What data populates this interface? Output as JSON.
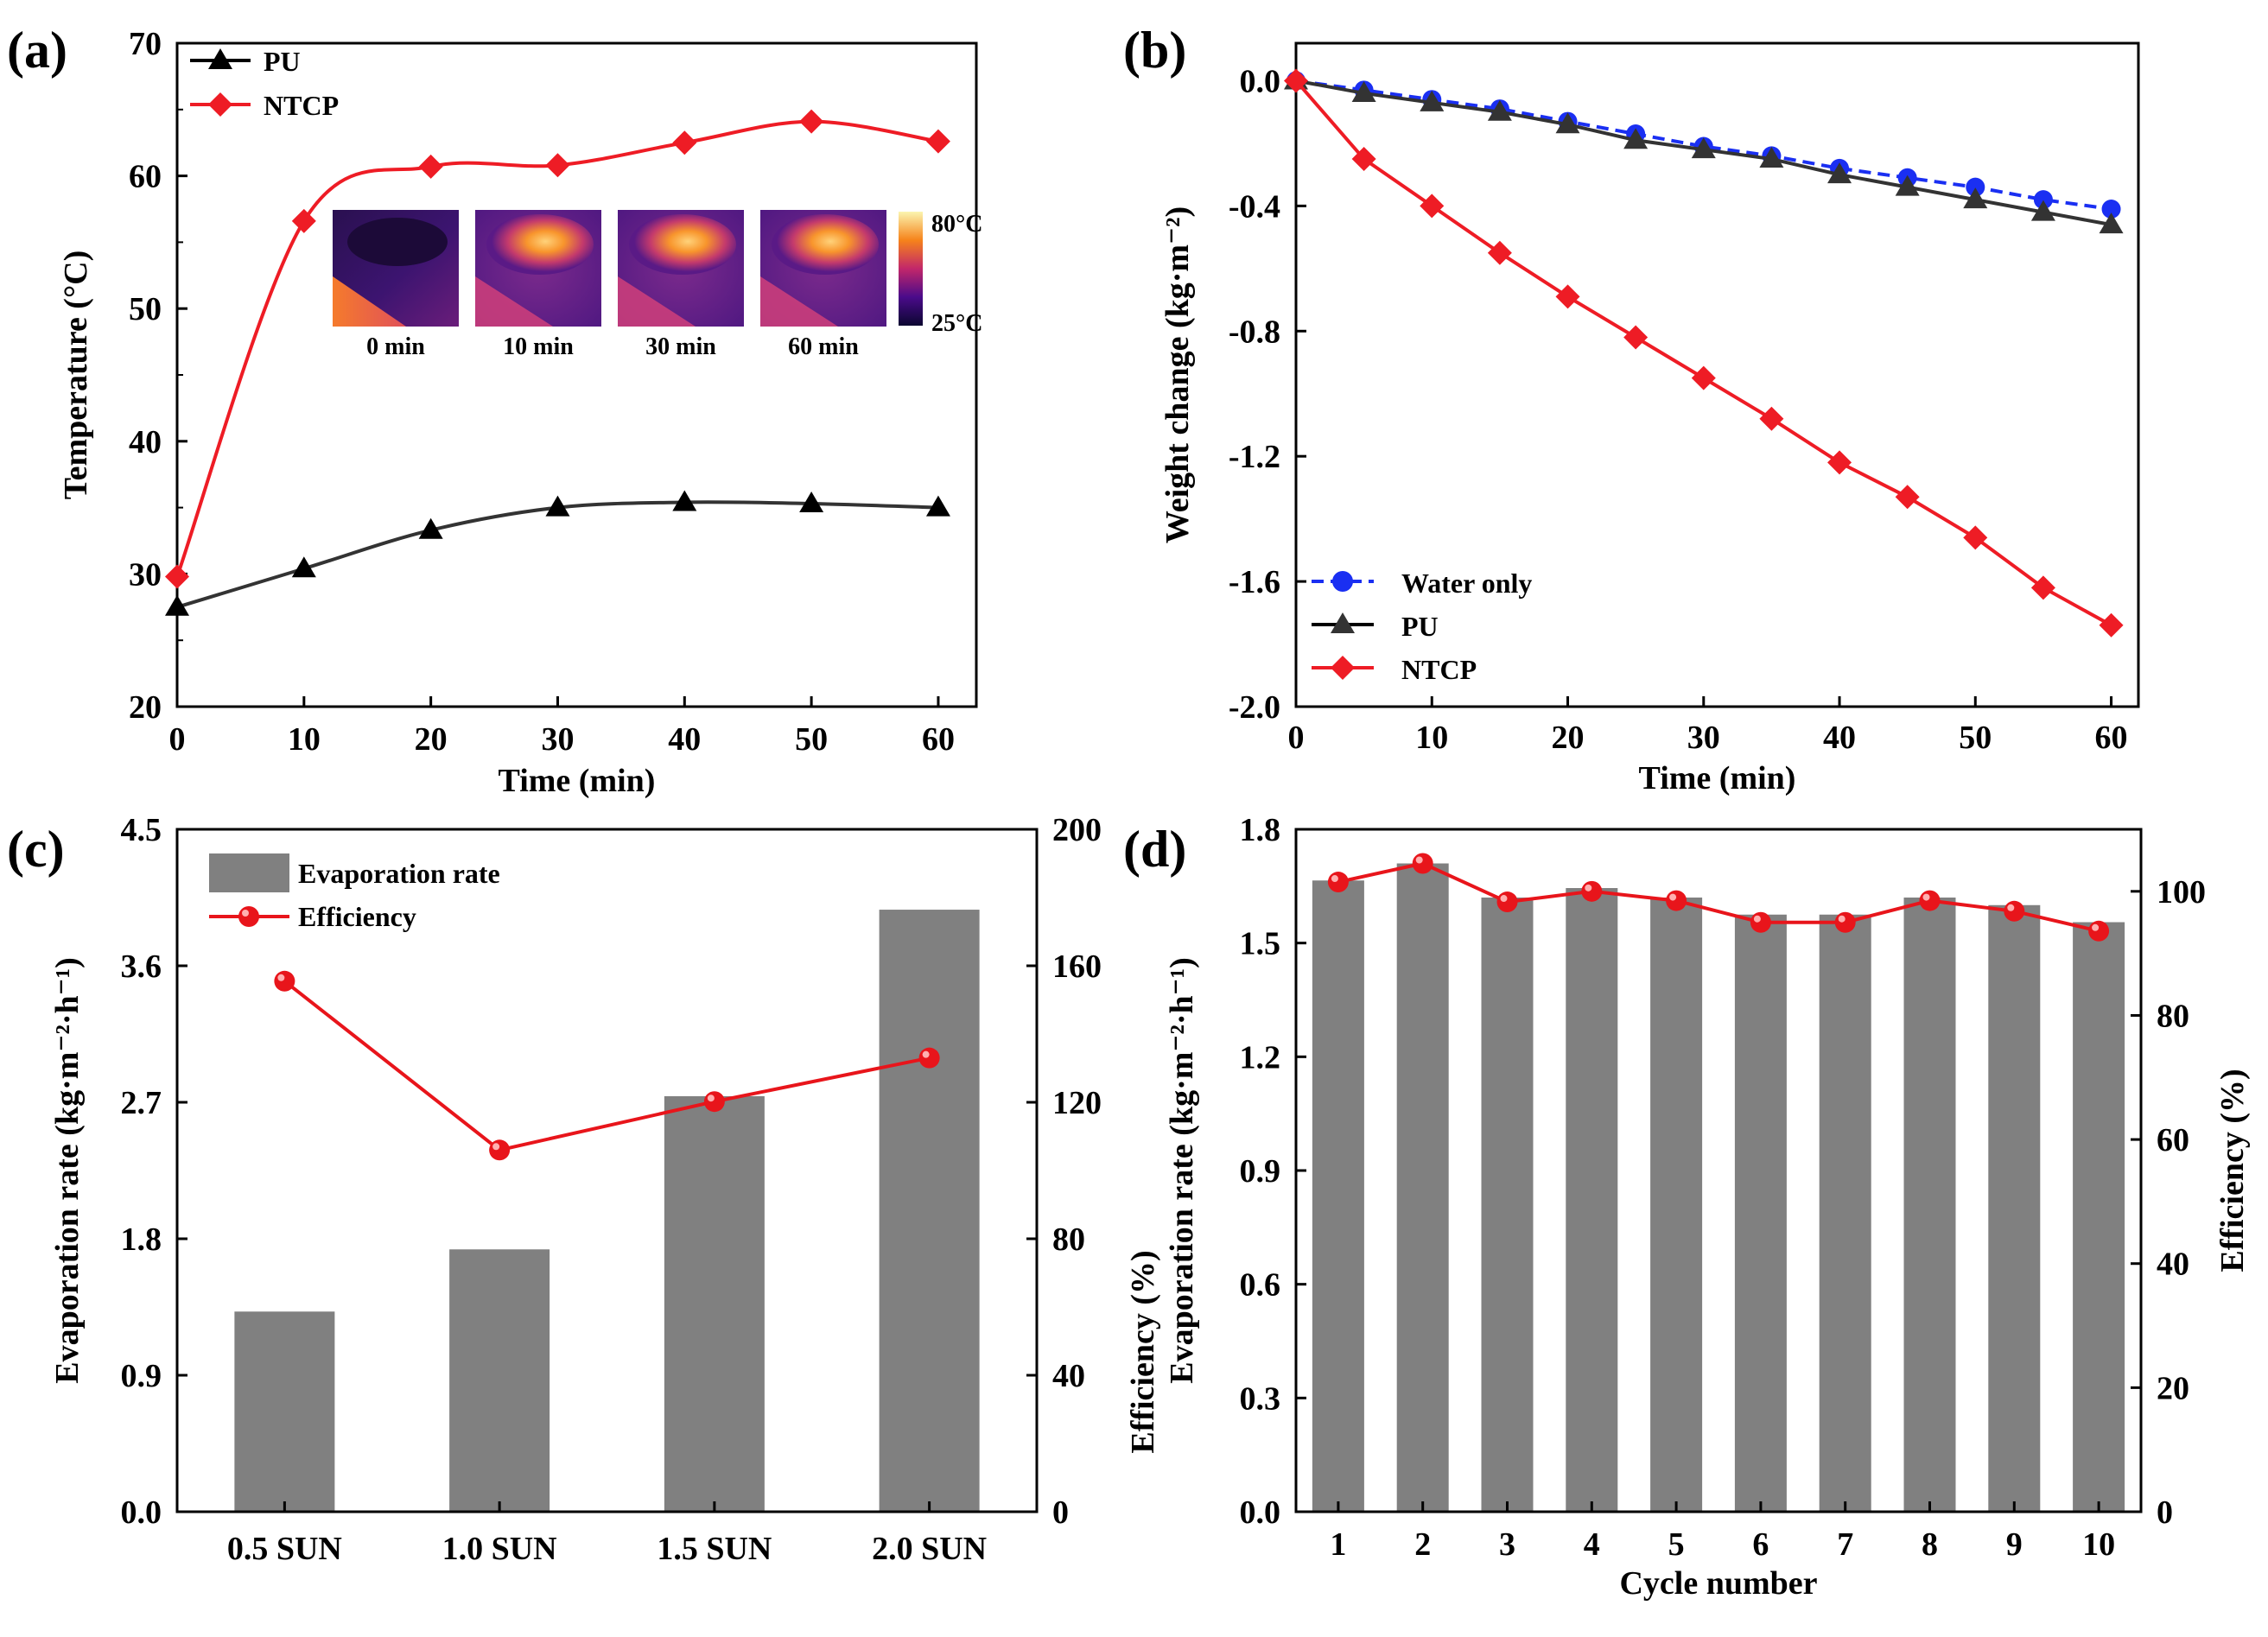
{
  "colors": {
    "pu": "#000000",
    "ntcp": "#ee1c25",
    "water": "#1a2ff2",
    "bar": "#808080",
    "efficiency": "#e8151b",
    "axis": "#000000"
  },
  "chart_data": [
    {
      "panel": "a",
      "panel_label": "(a)",
      "type": "line",
      "xlabel": "Time (min)",
      "ylabel": "Temperature (°C)",
      "xlim": [
        0,
        63
      ],
      "ylim": [
        20,
        70
      ],
      "xticks": [
        0,
        10,
        20,
        30,
        40,
        50,
        60
      ],
      "yticks": [
        20,
        30,
        40,
        50,
        60,
        70
      ],
      "legend": "top-left",
      "series": [
        {
          "name": "PU",
          "marker": "triangle",
          "x": [
            0,
            10,
            20,
            30,
            40,
            50,
            60
          ],
          "values": [
            27.5,
            30.4,
            33.3,
            35.0,
            35.4,
            35.3,
            35.0
          ]
        },
        {
          "name": "NTCP",
          "marker": "diamond",
          "x": [
            0,
            10,
            20,
            30,
            40,
            50,
            60
          ],
          "values": [
            29.8,
            56.6,
            60.7,
            60.8,
            62.5,
            64.1,
            62.6
          ]
        }
      ],
      "inset": {
        "times": [
          "0 min",
          "10 min",
          "30 min",
          "60 min"
        ],
        "colorbar_max": "80°C",
        "colorbar_min": "25°C"
      }
    },
    {
      "panel": "b",
      "panel_label": "(b)",
      "type": "line",
      "xlabel": "Time (min)",
      "ylabel": "Weight change (kg·m⁻²)",
      "xlim": [
        0,
        62
      ],
      "ylim": [
        -2.0,
        0.12
      ],
      "xticks": [
        0,
        10,
        20,
        30,
        40,
        50,
        60
      ],
      "yticks": [
        0.0,
        -0.4,
        -0.8,
        -1.2,
        -1.6,
        -2.0
      ],
      "legend": "bottom-left",
      "series": [
        {
          "name": "Water only",
          "marker": "circle",
          "x": [
            0,
            5,
            10,
            15,
            20,
            25,
            30,
            35,
            40,
            45,
            50,
            55,
            60
          ],
          "values": [
            0.0,
            -0.03,
            -0.06,
            -0.09,
            -0.13,
            -0.17,
            -0.21,
            -0.24,
            -0.28,
            -0.31,
            -0.34,
            -0.38,
            -0.41
          ]
        },
        {
          "name": "PU",
          "marker": "triangle",
          "x": [
            0,
            5,
            10,
            15,
            20,
            25,
            30,
            35,
            40,
            45,
            50,
            55,
            60
          ],
          "values": [
            0.0,
            -0.04,
            -0.07,
            -0.1,
            -0.14,
            -0.19,
            -0.22,
            -0.25,
            -0.3,
            -0.34,
            -0.38,
            -0.42,
            -0.46
          ]
        },
        {
          "name": "NTCP",
          "marker": "diamond",
          "x": [
            0,
            5,
            10,
            15,
            20,
            25,
            30,
            35,
            40,
            45,
            50,
            55,
            60
          ],
          "values": [
            0.0,
            -0.25,
            -0.4,
            -0.55,
            -0.69,
            -0.82,
            -0.95,
            -1.08,
            -1.22,
            -1.33,
            -1.46,
            -1.62,
            -1.74
          ]
        }
      ]
    },
    {
      "panel": "c",
      "panel_label": "(c)",
      "type": "bar",
      "categories": [
        "0.5 SUN",
        "1.0 SUN",
        "1.5 SUN",
        "2.0 SUN"
      ],
      "ylabel": "Evaporation rate (kg·m⁻²·h⁻¹)",
      "y2label": "",
      "ylim": [
        0,
        4.5
      ],
      "y2lim": [
        0,
        200
      ],
      "yticks": [
        0.0,
        0.9,
        1.8,
        2.7,
        3.6,
        4.5
      ],
      "y2ticks": [
        0,
        40,
        80,
        120,
        160,
        200
      ],
      "legend": "top-left",
      "series": [
        {
          "name": "Evaporation rate",
          "axis": "left",
          "kind": "bar",
          "values": [
            1.32,
            1.73,
            2.74,
            3.97
          ]
        },
        {
          "name": "Efficiency",
          "axis": "right",
          "kind": "line",
          "values": [
            155.5,
            106.0,
            120.2,
            133.0
          ]
        }
      ]
    },
    {
      "panel": "d",
      "panel_label": "(d)",
      "type": "bar",
      "categories": [
        "1",
        "2",
        "3",
        "4",
        "5",
        "6",
        "7",
        "8",
        "9",
        "10"
      ],
      "xlabel": "Cycle number",
      "ylabel": "Evaporation rate (kg·m⁻²·h⁻¹)",
      "ylabel_prefix": "Efficiency (%)",
      "y2label": "Efficiency (%)",
      "ylim": [
        0,
        1.8
      ],
      "y2lim": [
        0,
        110
      ],
      "yticks": [
        0.0,
        0.3,
        0.6,
        0.9,
        1.2,
        1.5,
        1.8
      ],
      "y2ticks": [
        0,
        20,
        40,
        60,
        80,
        100
      ],
      "series": [
        {
          "name": "Evaporation rate",
          "axis": "left",
          "kind": "bar",
          "values": [
            1.665,
            1.71,
            1.62,
            1.645,
            1.62,
            1.575,
            1.575,
            1.62,
            1.6,
            1.555
          ]
        },
        {
          "name": "Efficiency",
          "axis": "right",
          "kind": "line",
          "values": [
            101.5,
            104.5,
            98.3,
            100.0,
            98.5,
            95.0,
            95.0,
            98.5,
            96.8,
            93.6
          ]
        }
      ]
    }
  ]
}
